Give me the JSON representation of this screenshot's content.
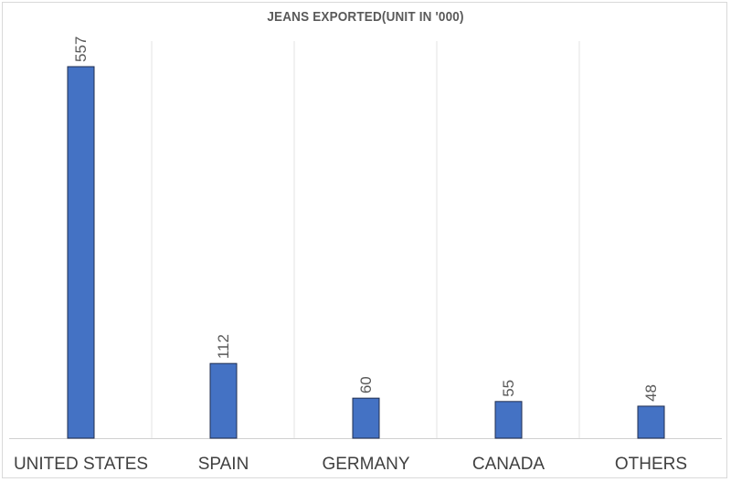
{
  "chart_data": {
    "type": "bar",
    "title": "JEANS EXPORTED(UNIT IN '000)",
    "categories": [
      "UNITED STATES",
      "SPAIN",
      "GERMANY",
      "CANADA",
      "OTHERS"
    ],
    "values": [
      557,
      112,
      60,
      55,
      48
    ],
    "ylim": [
      0,
      557
    ],
    "grid": "vertical-separators",
    "colors": {
      "bar": "#4472c4",
      "bar_outline": "#1f2d4f",
      "gridline": "#e3e3e3",
      "axis": "#d0d0d0"
    }
  }
}
